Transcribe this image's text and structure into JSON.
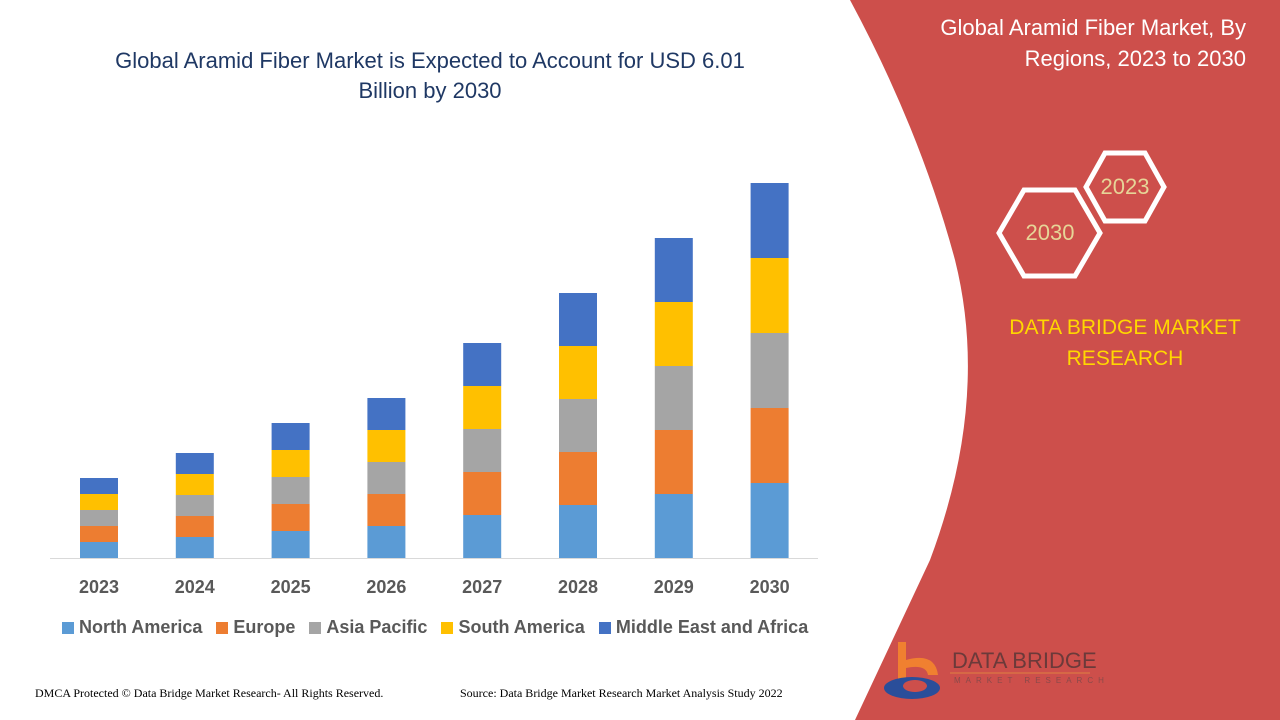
{
  "title": "Global Aramid Fiber Market is Expected to Account for USD 6.01 Billion by 2030",
  "panel": {
    "title": "Global Aramid Fiber Market, By Regions, 2023 to 2030",
    "hex_years": [
      "2023",
      "2030"
    ],
    "brand": "DATA BRIDGE MARKET RESEARCH",
    "logo_text": "DATA BRIDGE",
    "logo_subtext": "MARKET RESEARCH",
    "background_color": "#cd4f4b"
  },
  "footer": {
    "left": "DMCA Protected © Data Bridge Market Research- All Rights Reserved.",
    "right": "Source: Data Bridge Market Research Market Analysis Study 2022"
  },
  "chart_data": {
    "type": "bar",
    "stacked": true,
    "title": "Global Aramid Fiber Market is Expected to Account for USD 6.01 Billion by 2030",
    "xlabel": "",
    "ylabel": "",
    "y_axis_shown": false,
    "grid": false,
    "legend_position": "bottom",
    "categories": [
      "2023",
      "2024",
      "2025",
      "2026",
      "2027",
      "2028",
      "2029",
      "2030"
    ],
    "series": [
      {
        "name": "North America",
        "color": "#5b9bd5",
        "values": [
          16,
          21,
          27,
          32,
          43,
          53,
          64,
          75
        ]
      },
      {
        "name": "Europe",
        "color": "#ed7d31",
        "values": [
          16,
          21,
          27,
          32,
          43,
          53,
          64,
          75
        ]
      },
      {
        "name": "Asia Pacific",
        "color": "#a5a5a5",
        "values": [
          16,
          21,
          27,
          32,
          43,
          53,
          64,
          75
        ]
      },
      {
        "name": "South America",
        "color": "#ffc000",
        "values": [
          16,
          21,
          27,
          32,
          43,
          53,
          64,
          75
        ]
      },
      {
        "name": "Middle East and Africa",
        "color": "#4472c4",
        "values": [
          16,
          21,
          27,
          32,
          43,
          53,
          64,
          75
        ]
      }
    ]
  }
}
